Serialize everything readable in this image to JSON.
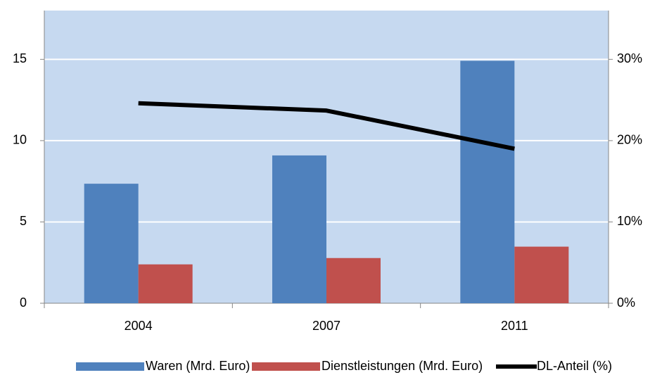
{
  "chart_data": {
    "type": "bar",
    "categories": [
      "2004",
      "2007",
      "2011"
    ],
    "series": [
      {
        "name": "Waren (Mrd. Euro)",
        "color": "#4f81bd",
        "values": [
          7.35,
          9.09,
          14.91
        ]
      },
      {
        "name": "Dienstleistungen (Mrd. Euro)",
        "color": "#c0504d",
        "values": [
          2.39,
          2.78,
          3.48
        ]
      },
      {
        "name": "DL-Anteil (%)",
        "color": "#000000",
        "type": "line",
        "axis": "y2",
        "values": [
          24.6,
          23.7,
          19.0
        ]
      }
    ],
    "ylim": [
      0,
      18
    ],
    "yticks": [
      0,
      5,
      10,
      15
    ],
    "y2lim": [
      0,
      36
    ],
    "y2ticks": [
      {
        "value": 0,
        "label": "0%"
      },
      {
        "value": 10,
        "label": "10%"
      },
      {
        "value": 20,
        "label": "20%"
      },
      {
        "value": 30,
        "label": "30%"
      }
    ],
    "grid": true,
    "background": "#c6d9f0",
    "legend": "bottom"
  }
}
